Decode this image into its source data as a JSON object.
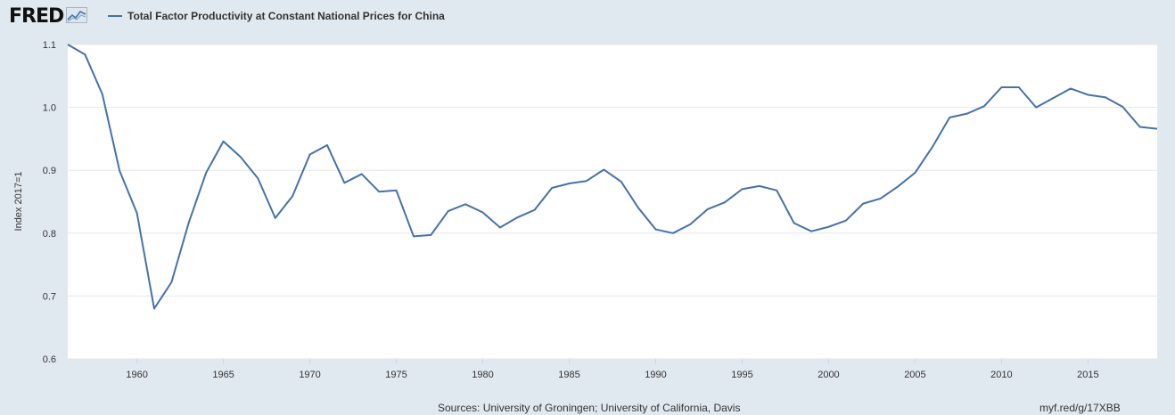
{
  "header": {
    "logo_text": "FRED",
    "legend_label": "Total Factor Productivity at Constant National Prices for China"
  },
  "footer": {
    "source": "Sources: University of Groningen; University of California, Davis",
    "link": "myf.red/g/17XBB"
  },
  "colors": {
    "line": "#4572a7",
    "background": "#e1e9f0",
    "plot_background": "#ffffff",
    "grid": "#e6e6e6"
  },
  "chart_data": {
    "type": "line",
    "ylabel": "Index 2017=1",
    "ylim": [
      0.6,
      1.1
    ],
    "xlim": [
      1956,
      2019
    ],
    "yticks": [
      "0.6",
      "0.7",
      "0.8",
      "0.9",
      "1.0",
      "1.1"
    ],
    "xticks": [
      "1960",
      "1965",
      "1970",
      "1975",
      "1980",
      "1985",
      "1990",
      "1995",
      "2000",
      "2005",
      "2010",
      "2015"
    ],
    "grid": true,
    "legend": "top-left",
    "series": [
      {
        "name": "Total Factor Productivity at Constant National Prices for China",
        "x": [
          1956,
          1957,
          1958,
          1959,
          1960,
          1961,
          1962,
          1963,
          1964,
          1965,
          1966,
          1967,
          1968,
          1969,
          1970,
          1971,
          1972,
          1973,
          1974,
          1975,
          1976,
          1977,
          1978,
          1979,
          1980,
          1981,
          1982,
          1983,
          1984,
          1985,
          1986,
          1987,
          1988,
          1989,
          1990,
          1991,
          1992,
          1993,
          1994,
          1995,
          1996,
          1997,
          1998,
          1999,
          2000,
          2001,
          2002,
          2003,
          2004,
          2005,
          2006,
          2007,
          2008,
          2009,
          2010,
          2011,
          2012,
          2013,
          2014,
          2015,
          2016,
          2017,
          2018,
          2019
        ],
        "y": [
          1.1,
          1.084,
          1.021,
          0.899,
          0.832,
          0.68,
          0.722,
          0.817,
          0.896,
          0.946,
          0.921,
          0.887,
          0.824,
          0.859,
          0.925,
          0.94,
          0.88,
          0.894,
          0.866,
          0.868,
          0.795,
          0.797,
          0.835,
          0.846,
          0.833,
          0.809,
          0.825,
          0.837,
          0.872,
          0.879,
          0.883,
          0.901,
          0.882,
          0.84,
          0.806,
          0.8,
          0.814,
          0.838,
          0.849,
          0.87,
          0.875,
          0.868,
          0.816,
          0.803,
          0.81,
          0.82,
          0.847,
          0.855,
          0.874,
          0.896,
          0.937,
          0.984,
          0.99,
          1.002,
          1.032,
          1.032,
          1.0,
          1.015,
          1.03,
          1.02,
          1.016,
          1.001,
          0.969,
          0.966
        ]
      }
    ]
  }
}
